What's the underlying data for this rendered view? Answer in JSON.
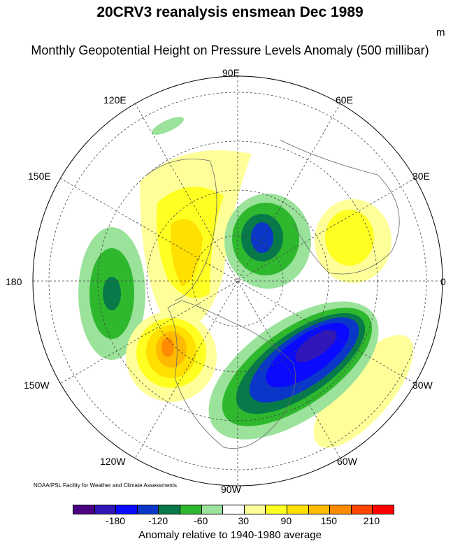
{
  "title": "20CRV3 reanalysis ensmean Dec 1989",
  "subtitle": "Monthly Geopotential Height on Pressure Levels Anomaly (500 millibar)",
  "units": "m",
  "longitude_labels": {
    "top": "90E",
    "upper_left": "120E",
    "upper_right": "60E",
    "left_upper": "150E",
    "right_upper": "30E",
    "left": "180",
    "right": "0",
    "left_lower": "150W",
    "right_lower": "30W",
    "lower_left": "120W",
    "lower_right": "60W",
    "bottom": "90W"
  },
  "credit": "NOAA/PSL Facility for Weather and Climate Assessments",
  "colorbar": {
    "colors": [
      "#4b0082",
      "#3217b8",
      "#0a0aff",
      "#0a37c8",
      "#087a4a",
      "#2eb82e",
      "#9be29b",
      "#ffffff",
      "#ffff99",
      "#ffff22",
      "#ffe000",
      "#ffbb00",
      "#ff8c00",
      "#ff4500",
      "#ff0000"
    ],
    "tick_labels": [
      "-180",
      "-120",
      "-60",
      "30",
      "90",
      "150",
      "210"
    ],
    "title": "Anomaly relative to 1940-1980 average"
  }
}
